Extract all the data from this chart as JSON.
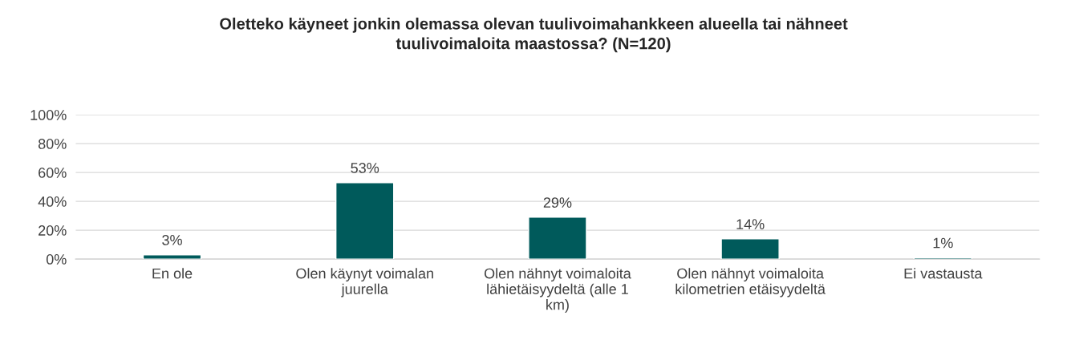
{
  "chart_data": {
    "type": "bar",
    "title": "Oletteko käyneet jonkin olemassa olevan tuulivoimahankkeen alueella tai nähneet\ntuulivoimaloita maastossa? (N=120)",
    "categories": [
      "En ole",
      "Olen käynyt voimalan\njuurella",
      "Olen nähnyt voimaloita\nlähietäisyydeltä (alle 1\nkm)",
      "Olen nähnyt voimaloita\nkilometrien etäisyydeltä",
      "Ei vastausta"
    ],
    "values": [
      3,
      53,
      29,
      14,
      1
    ],
    "value_labels": [
      "3%",
      "53%",
      "29%",
      "14%",
      "1%"
    ],
    "color": "#005a5b",
    "ylim": [
      0,
      100
    ],
    "yticks": [
      {
        "value": 0,
        "label": "0%"
      },
      {
        "value": 20,
        "label": "20%"
      },
      {
        "value": 40,
        "label": "40%"
      },
      {
        "value": 60,
        "label": "60%"
      },
      {
        "value": 80,
        "label": "80%"
      },
      {
        "value": 100,
        "label": "100%"
      }
    ],
    "grid": "y"
  }
}
